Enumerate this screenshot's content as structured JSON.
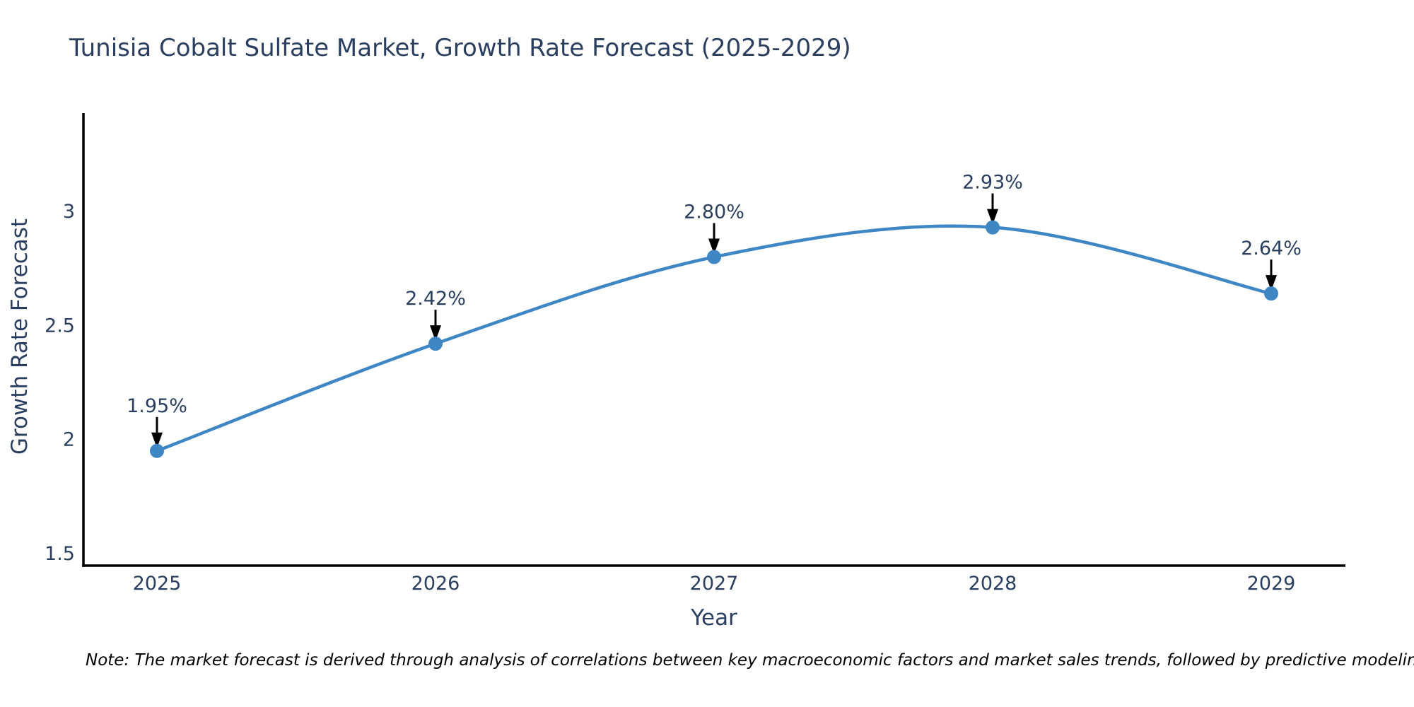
{
  "title": "Tunisia Cobalt Sulfate Market, Growth Rate Forecast (2025-2029)",
  "note": "Note: The market forecast is derived through analysis of correlations between key macroeconomic factors and market sales trends, followed by predictive modeling to project future sales",
  "chart_data": {
    "type": "line",
    "title": "Tunisia Cobalt Sulfate Market, Growth Rate Forecast (2025-2029)",
    "x": [
      2025,
      2026,
      2027,
      2028,
      2029
    ],
    "series": [
      {
        "name": "Growth Rate Forecast",
        "values": [
          1.95,
          2.42,
          2.8,
          2.93,
          2.64
        ]
      }
    ],
    "point_labels": [
      "1.95%",
      "2.42%",
      "2.80%",
      "2.93%",
      "2.64%"
    ],
    "xlabel": "Year",
    "ylabel": "Growth Rate Forecast",
    "yticks": [
      1.5,
      2,
      2.5,
      3
    ],
    "ylim": [
      1.45,
      3.45
    ],
    "line_shape": "spline",
    "grid": false,
    "legend_position": "none",
    "annotations": "black arrows pointing down from each value label to its data point",
    "colors": {
      "line": "#3f86c5",
      "marker": "#3f86c5",
      "axis": "#000000",
      "text": "#2a3f5f",
      "arrow": "#000000",
      "note": "#000000",
      "background": "#ffffff"
    }
  }
}
